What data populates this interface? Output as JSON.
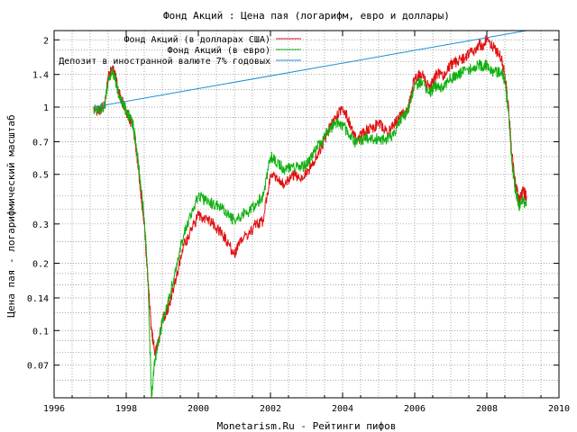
{
  "chart_data": {
    "type": "line",
    "title": "Фонд Акций : Цена пая (логарифм, евро и доллары)",
    "xlabel": "Monetarism.Ru - Рейтинги пифов",
    "ylabel": "Цена пая - логарифмический масштаб",
    "y_scale": "log",
    "xlim": [
      1996,
      2010
    ],
    "ylim": [
      0.05,
      2.2
    ],
    "x_ticks": [
      1996,
      1998,
      2000,
      2002,
      2004,
      2006,
      2008,
      2010
    ],
    "y_ticks": [
      {
        "value": 0.07,
        "label": "0.07"
      },
      {
        "value": 0.1,
        "label": "0.1"
      },
      {
        "value": 0.14,
        "label": "0.14"
      },
      {
        "value": 0.2,
        "label": "0.2"
      },
      {
        "value": 0.3,
        "label": "0.3"
      },
      {
        "value": 0.5,
        "label": "0.5"
      },
      {
        "value": 0.7,
        "label": "0.7"
      },
      {
        "value": 1,
        "label": "1"
      },
      {
        "value": 1.4,
        "label": "1.4"
      },
      {
        "value": 2,
        "label": "2"
      }
    ],
    "grid": true,
    "legend_position": "top-left",
    "series": [
      {
        "name": "Фонд Акций (в долларах США)",
        "color": "#e01010",
        "x": [
          1997.1,
          1997.25,
          1997.4,
          1997.5,
          1997.6,
          1997.7,
          1997.8,
          1997.9,
          1998.0,
          1998.1,
          1998.2,
          1998.3,
          1998.4,
          1998.5,
          1998.6,
          1998.7,
          1998.8,
          1998.9,
          1999.0,
          1999.2,
          1999.4,
          1999.6,
          1999.8,
          2000.0,
          2000.2,
          2000.4,
          2000.6,
          2000.8,
          2001.0,
          2001.2,
          2001.4,
          2001.6,
          2001.8,
          2002.0,
          2002.2,
          2002.4,
          2002.6,
          2002.8,
          2003.0,
          2003.2,
          2003.4,
          2003.6,
          2003.8,
          2004.0,
          2004.2,
          2004.4,
          2004.6,
          2004.8,
          2005.0,
          2005.2,
          2005.4,
          2005.6,
          2005.8,
          2006.0,
          2006.2,
          2006.4,
          2006.5,
          2006.6,
          2006.8,
          2007.0,
          2007.2,
          2007.4,
          2007.6,
          2007.8,
          2007.9,
          2008.0,
          2008.2,
          2008.4,
          2008.5,
          2008.6,
          2008.7,
          2008.8,
          2008.9,
          2009.0,
          2009.1
        ],
        "values": [
          0.98,
          0.96,
          1.02,
          1.35,
          1.5,
          1.38,
          1.15,
          1.05,
          0.95,
          0.88,
          0.8,
          0.6,
          0.42,
          0.3,
          0.17,
          0.1,
          0.08,
          0.09,
          0.11,
          0.13,
          0.18,
          0.24,
          0.28,
          0.33,
          0.32,
          0.3,
          0.28,
          0.25,
          0.22,
          0.26,
          0.27,
          0.3,
          0.31,
          0.5,
          0.47,
          0.45,
          0.5,
          0.48,
          0.5,
          0.57,
          0.65,
          0.78,
          0.9,
          1.0,
          0.85,
          0.7,
          0.78,
          0.8,
          0.85,
          0.78,
          0.82,
          0.92,
          0.95,
          1.35,
          1.42,
          1.2,
          1.3,
          1.4,
          1.38,
          1.55,
          1.6,
          1.68,
          1.78,
          1.9,
          1.85,
          2.05,
          1.85,
          1.65,
          1.4,
          1.0,
          0.6,
          0.45,
          0.38,
          0.42,
          0.4
        ]
      },
      {
        "name": "Фонд Акций (в евро)",
        "color": "#10b010",
        "x": [
          1997.1,
          1997.25,
          1997.4,
          1997.5,
          1997.6,
          1997.7,
          1997.8,
          1997.9,
          1998.0,
          1998.1,
          1998.2,
          1998.3,
          1998.4,
          1998.5,
          1998.6,
          1998.7,
          1998.8,
          1998.9,
          1999.0,
          1999.2,
          1999.4,
          1999.6,
          1999.8,
          2000.0,
          2000.2,
          2000.4,
          2000.6,
          2000.8,
          2001.0,
          2001.2,
          2001.4,
          2001.6,
          2001.8,
          2002.0,
          2002.2,
          2002.4,
          2002.6,
          2002.8,
          2003.0,
          2003.2,
          2003.4,
          2003.6,
          2003.8,
          2004.0,
          2004.2,
          2004.4,
          2004.6,
          2004.8,
          2005.0,
          2005.2,
          2005.4,
          2005.6,
          2005.8,
          2006.0,
          2006.2,
          2006.4,
          2006.5,
          2006.6,
          2006.8,
          2007.0,
          2007.2,
          2007.4,
          2007.6,
          2007.8,
          2007.9,
          2008.0,
          2008.2,
          2008.4,
          2008.5,
          2008.6,
          2008.7,
          2008.8,
          2008.9,
          2009.0,
          2009.1
        ],
        "values": [
          0.98,
          0.96,
          1.0,
          1.32,
          1.45,
          1.32,
          1.12,
          1.05,
          0.96,
          0.9,
          0.82,
          0.63,
          0.45,
          0.32,
          0.18,
          0.05,
          0.075,
          0.09,
          0.11,
          0.14,
          0.2,
          0.27,
          0.33,
          0.4,
          0.38,
          0.37,
          0.36,
          0.33,
          0.31,
          0.33,
          0.34,
          0.37,
          0.4,
          0.6,
          0.57,
          0.52,
          0.55,
          0.53,
          0.55,
          0.63,
          0.7,
          0.78,
          0.85,
          0.83,
          0.75,
          0.68,
          0.73,
          0.72,
          0.72,
          0.72,
          0.75,
          0.88,
          0.95,
          1.25,
          1.3,
          1.15,
          1.2,
          1.25,
          1.22,
          1.35,
          1.4,
          1.45,
          1.5,
          1.55,
          1.5,
          1.55,
          1.42,
          1.45,
          1.3,
          0.95,
          0.55,
          0.42,
          0.36,
          0.38,
          0.36
        ]
      },
      {
        "name": "Депозит в иностранной валюте 7% годовых",
        "color": "#1a8fd0",
        "x": [
          1997.1,
          2009.1
        ],
        "values": [
          1.0,
          2.2
        ]
      }
    ]
  }
}
